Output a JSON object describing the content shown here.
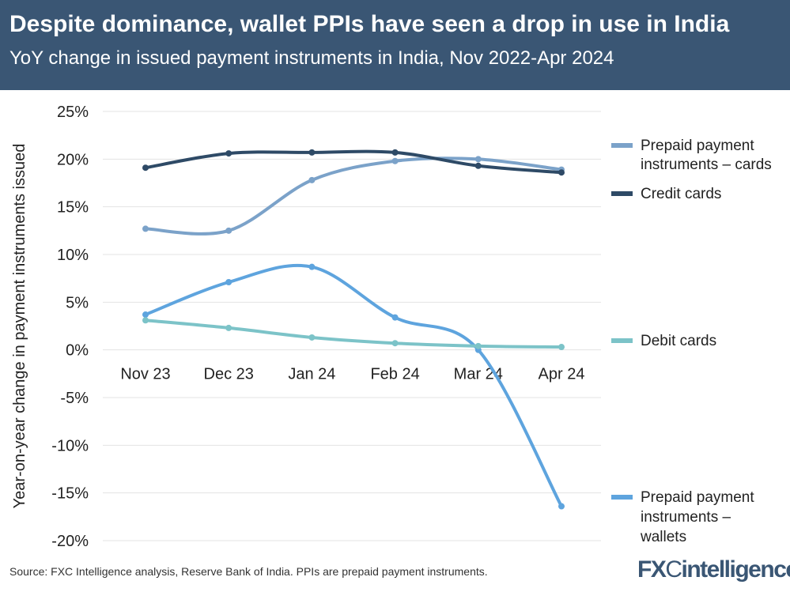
{
  "header": {
    "title": "Despite dominance, wallet PPIs have seen a drop in use in India",
    "subtitle": "YoY change in issued payment instruments in India, Nov 2022-Apr 2024"
  },
  "footer": {
    "source": "Source: FXC Intelligence analysis, Reserve Bank of India. PPIs are prepaid payment instruments.",
    "logo": "FXCintelligence"
  },
  "colors": {
    "header": "#3a5674",
    "credit": "#2e4a66",
    "ppi_cards": "#7ba2c9",
    "ppi_wallets": "#5ea4de",
    "debit": "#7cc3c8"
  },
  "chart_data": {
    "type": "line",
    "title": "Despite dominance, wallet PPIs have seen a drop in use in India",
    "subtitle": "YoY change in issued payment instruments in India, Nov 2022-Apr 2024",
    "xlabel": "",
    "ylabel": "Year-on-year change in payment instruments issued",
    "categories": [
      "Nov 23",
      "Dec 23",
      "Jan 24",
      "Feb 24",
      "Mar 24",
      "Apr 24"
    ],
    "ylim": [
      -20,
      25
    ],
    "yticks": [
      25,
      20,
      15,
      10,
      5,
      0,
      -5,
      -10,
      -15,
      -20
    ],
    "ytick_labels": [
      "25%",
      "20%",
      "15%",
      "10%",
      "5%",
      "0%",
      "-5%",
      "-10%",
      "-15%",
      "-20%"
    ],
    "grid": true,
    "legend": "right",
    "series": [
      {
        "name": "Prepaid payment instruments – cards",
        "legend_lines": [
          "Prepaid payment",
          "instruments – cards"
        ],
        "color": "#7ba2c9",
        "values": [
          12.7,
          12.5,
          17.8,
          19.8,
          20.0,
          18.9
        ]
      },
      {
        "name": "Credit cards",
        "legend_lines": [
          "Credit cards"
        ],
        "color": "#2e4a66",
        "values": [
          19.1,
          20.6,
          20.7,
          20.7,
          19.3,
          18.6
        ]
      },
      {
        "name": "Debit cards",
        "legend_lines": [
          "Debit cards"
        ],
        "color": "#7cc3c8",
        "values": [
          3.1,
          2.3,
          1.3,
          0.7,
          0.4,
          0.3
        ]
      },
      {
        "name": "Prepaid payment instruments – wallets",
        "legend_lines": [
          "Prepaid payment",
          "instruments –",
          "wallets"
        ],
        "color": "#5ea4de",
        "values": [
          3.7,
          7.1,
          8.7,
          3.4,
          0.0,
          -16.4
        ]
      }
    ]
  }
}
